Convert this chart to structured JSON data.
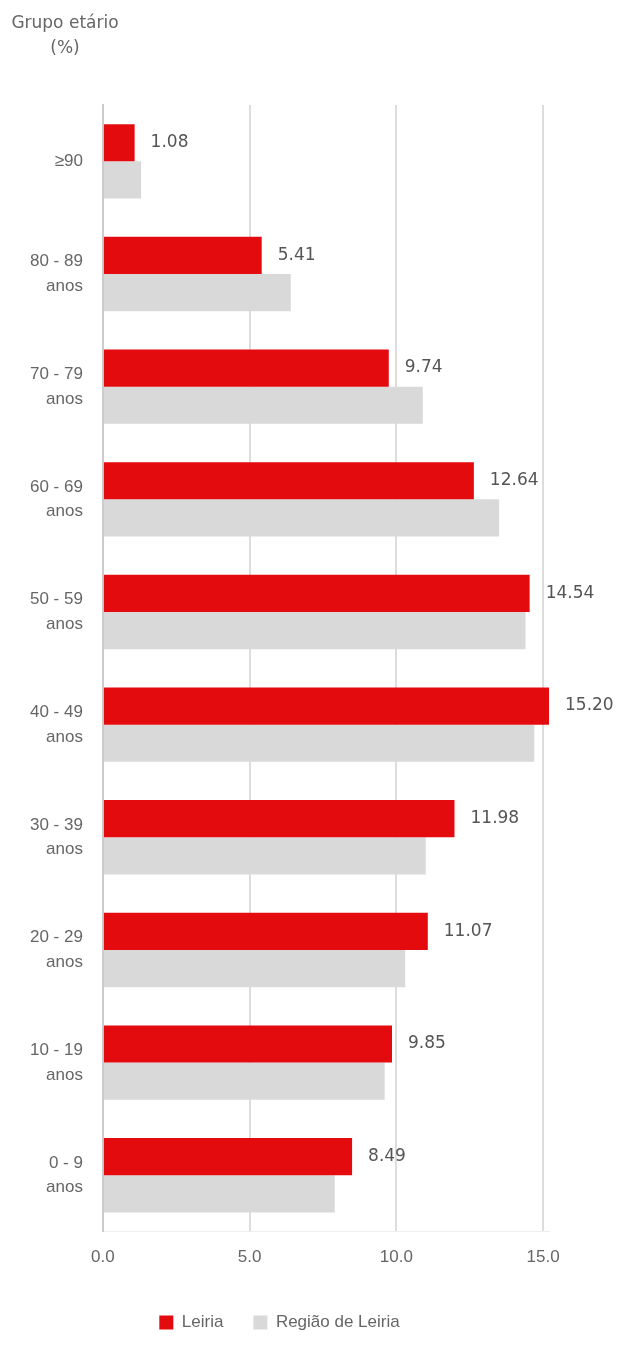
{
  "chart_data": {
    "type": "bar",
    "orientation": "horizontal",
    "ylabel": "Grupo etário (%)",
    "categories": [
      "≥90",
      "80 - 89 anos",
      "70 - 79 anos",
      "60 - 69 anos",
      "50 - 59 anos",
      "40 - 49 anos",
      "30 - 39 anos",
      "20 - 29 anos",
      "10 - 19 anos",
      "0 - 9 anos"
    ],
    "series": [
      {
        "name": "Leiria",
        "color": "#e30b0e",
        "values": [
          1.08,
          5.41,
          9.74,
          12.64,
          14.54,
          15.2,
          11.98,
          11.07,
          9.85,
          8.49
        ],
        "value_labels": [
          "1.08",
          "5.41",
          "9.74",
          "12.64",
          "14.54",
          "15.20",
          "11.98",
          "11.07",
          "9.85",
          "8.49"
        ]
      },
      {
        "name": "Região de Leiria",
        "color": "#d9d9d9",
        "values": [
          1.3,
          6.4,
          10.9,
          13.5,
          14.4,
          14.7,
          11.0,
          10.3,
          9.6,
          7.9
        ]
      }
    ],
    "xlim": [
      0,
      15.2
    ],
    "xticks": [
      {
        "value": 0,
        "label": "0.0"
      },
      {
        "value": 5,
        "label": "5.0"
      },
      {
        "value": 10,
        "label": "10.0"
      },
      {
        "value": 15,
        "label": "15.0"
      }
    ],
    "grid": "x",
    "legend": "bottom"
  }
}
